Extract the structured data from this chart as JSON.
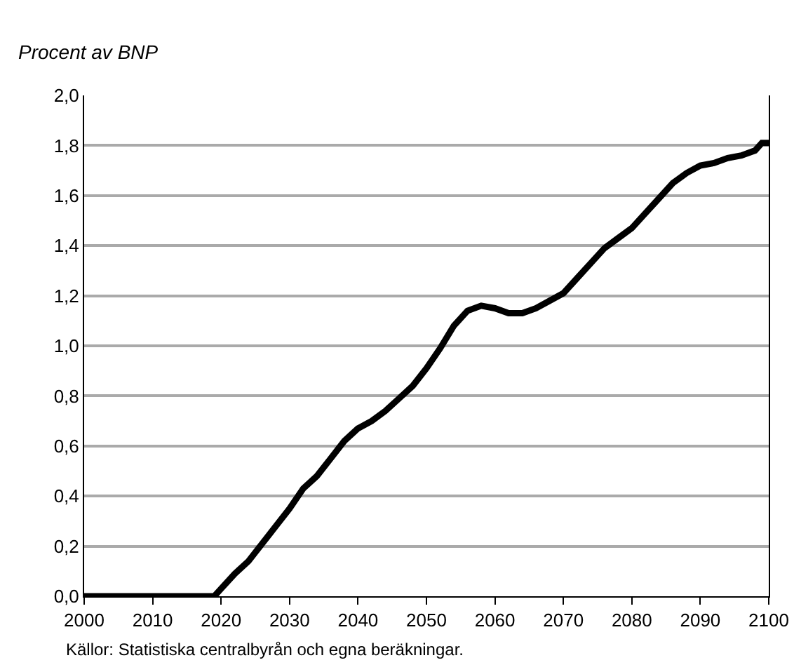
{
  "chart_data": {
    "type": "line",
    "ylabel": "Procent av BNP",
    "annotations": [
      "Källor: Statistiska centralbyrån och egna beräkningar."
    ],
    "x": [
      2000,
      2005,
      2010,
      2015,
      2019,
      2020,
      2022,
      2024,
      2026,
      2028,
      2030,
      2032,
      2034,
      2036,
      2038,
      2040,
      2042,
      2044,
      2046,
      2048,
      2050,
      2052,
      2054,
      2056,
      2058,
      2060,
      2062,
      2064,
      2066,
      2068,
      2070,
      2072,
      2074,
      2076,
      2078,
      2080,
      2082,
      2084,
      2086,
      2088,
      2090,
      2092,
      2094,
      2096,
      2098,
      2099,
      2100
    ],
    "series": [
      {
        "color": "#000000",
        "values": [
          0,
          0,
          0,
          0,
          0,
          0.03,
          0.09,
          0.14,
          0.21,
          0.28,
          0.35,
          0.43,
          0.48,
          0.55,
          0.62,
          0.67,
          0.7,
          0.74,
          0.79,
          0.84,
          0.91,
          0.99,
          1.08,
          1.14,
          1.16,
          1.15,
          1.13,
          1.13,
          1.15,
          1.18,
          1.21,
          1.27,
          1.33,
          1.39,
          1.43,
          1.47,
          1.53,
          1.59,
          1.65,
          1.69,
          1.72,
          1.73,
          1.75,
          1.76,
          1.78,
          1.81,
          1.81
        ]
      }
    ],
    "xlim": [
      2000,
      2100
    ],
    "xticks": [
      2000,
      2010,
      2020,
      2030,
      2040,
      2050,
      2060,
      2070,
      2080,
      2090,
      2100
    ],
    "ylim": [
      0,
      2
    ],
    "yticks": [
      {
        "value": 0,
        "label": "0,0"
      },
      {
        "value": 0.2,
        "label": "0,2"
      },
      {
        "value": 0.4,
        "label": "0,4"
      },
      {
        "value": 0.6,
        "label": "0,6"
      },
      {
        "value": 0.8,
        "label": "0,8"
      },
      {
        "value": 1,
        "label": "1,0"
      },
      {
        "value": 1.2,
        "label": "1,2"
      },
      {
        "value": 1.4,
        "label": "1,4"
      },
      {
        "value": 1.6,
        "label": "1,6"
      },
      {
        "value": 1.8,
        "label": "1,8"
      },
      {
        "value": 2,
        "label": "2,0"
      }
    ],
    "grid": "y",
    "marker": "none",
    "line_style": "solid"
  }
}
